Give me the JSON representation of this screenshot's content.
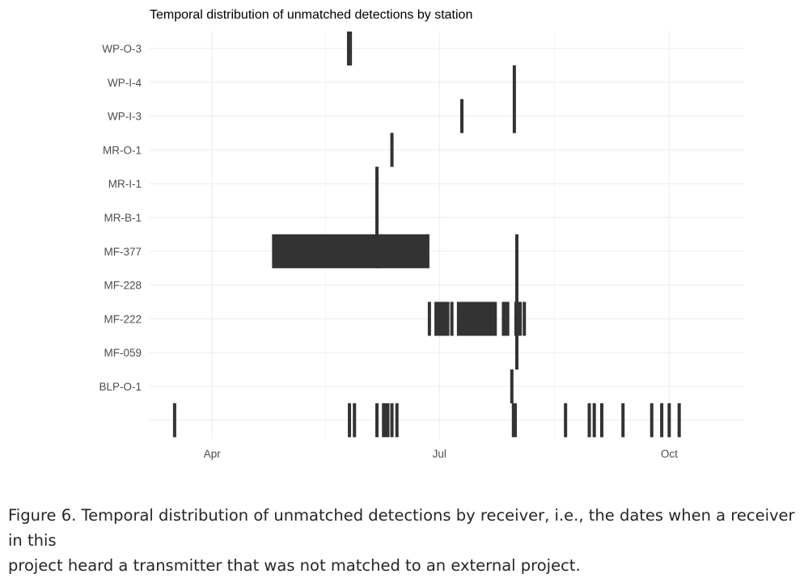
{
  "chart_data": {
    "type": "timeline",
    "title": "Temporal distribution of unmatched detections by station",
    "xlabel": "",
    "ylabel": "",
    "x_ticks": [
      "Apr",
      "Jul",
      "Oct"
    ],
    "x_tick_dates": [
      "2023-04-01",
      "2023-07-01",
      "2023-10-01"
    ],
    "xlim": [
      "2023-03-07",
      "2023-10-31"
    ],
    "grid": true,
    "bar_color": "#333333",
    "grid_color": "#ebebeb",
    "stations": [
      {
        "name": "WP-O-3",
        "detection_intervals": [
          [
            "2023-05-25",
            "2023-05-27"
          ]
        ]
      },
      {
        "name": "WP-I-4",
        "detection_intervals": [
          [
            "2023-07-31",
            "2023-07-31"
          ]
        ]
      },
      {
        "name": "WP-I-3",
        "detection_intervals": [
          [
            "2023-07-10",
            "2023-07-10"
          ],
          [
            "2023-07-31",
            "2023-07-31"
          ]
        ]
      },
      {
        "name": "MR-O-1",
        "detection_intervals": [
          [
            "2023-06-12",
            "2023-06-12"
          ]
        ]
      },
      {
        "name": "MR-I-1",
        "detection_intervals": [
          [
            "2023-06-06",
            "2023-06-06"
          ]
        ]
      },
      {
        "name": "MR-B-1",
        "detection_intervals": [
          [
            "2023-06-06",
            "2023-06-06"
          ]
        ]
      },
      {
        "name": "MF-377",
        "detection_intervals": [
          [
            "2023-04-25",
            "2023-06-27"
          ],
          [
            "2023-06-06",
            "2023-06-06"
          ],
          [
            "2023-08-01",
            "2023-08-01"
          ]
        ]
      },
      {
        "name": "MF-228",
        "detection_intervals": [
          [
            "2023-08-01",
            "2023-08-01"
          ]
        ]
      },
      {
        "name": "MF-222",
        "detection_intervals": [
          [
            "2023-06-27",
            "2023-06-27"
          ],
          [
            "2023-06-29",
            "2023-07-05"
          ],
          [
            "2023-07-06",
            "2023-07-06"
          ],
          [
            "2023-07-08",
            "2023-07-24"
          ],
          [
            "2023-07-26",
            "2023-07-29"
          ],
          [
            "2023-07-31",
            "2023-08-03"
          ],
          [
            "2023-08-04",
            "2023-08-04"
          ]
        ]
      },
      {
        "name": "MF-059",
        "detection_intervals": [
          [
            "2023-08-01",
            "2023-08-01"
          ]
        ]
      },
      {
        "name": "BLP-O-1",
        "detection_intervals": [
          [
            "2023-07-30",
            "2023-07-30"
          ]
        ]
      },
      {
        "name": "",
        "detection_intervals": [
          [
            "2023-03-17",
            "2023-03-17"
          ],
          [
            "2023-05-26",
            "2023-05-26"
          ],
          [
            "2023-05-28",
            "2023-05-28"
          ],
          [
            "2023-06-06",
            "2023-06-06"
          ],
          [
            "2023-06-08",
            "2023-06-11"
          ],
          [
            "2023-06-12",
            "2023-06-12"
          ],
          [
            "2023-06-14",
            "2023-06-14"
          ],
          [
            "2023-07-30",
            "2023-08-01"
          ],
          [
            "2023-08-20",
            "2023-08-21"
          ],
          [
            "2023-08-30",
            "2023-08-30"
          ],
          [
            "2023-09-01",
            "2023-09-01"
          ],
          [
            "2023-09-04",
            "2023-09-04"
          ],
          [
            "2023-09-12",
            "2023-09-13"
          ],
          [
            "2023-09-24",
            "2023-09-24"
          ],
          [
            "2023-09-28",
            "2023-09-28"
          ],
          [
            "2023-10-01",
            "2023-10-01"
          ],
          [
            "2023-10-05",
            "2023-10-05"
          ]
        ]
      }
    ]
  },
  "caption": {
    "line1": "Figure 6. Temporal distribution of unmatched detections by receiver, i.e., the dates when a receiver in this",
    "line2": "project heard a transmitter that was not matched to an external project."
  }
}
